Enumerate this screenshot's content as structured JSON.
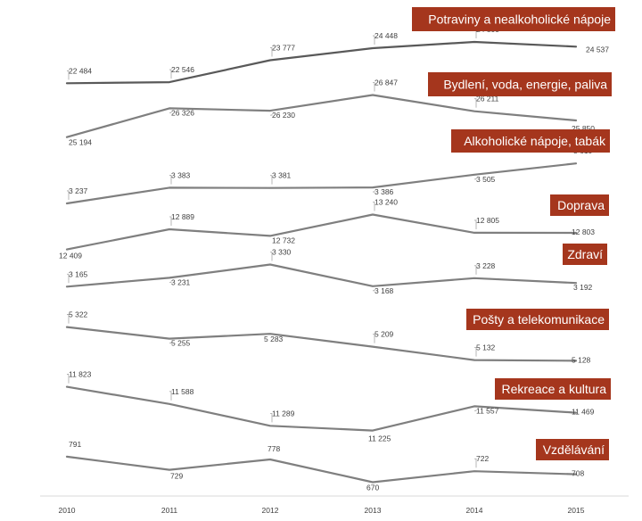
{
  "chart_data": {
    "type": "line",
    "title": "",
    "xlabel": "",
    "ylabel": "",
    "x": [
      "2010",
      "2011",
      "2012",
      "2013",
      "2014",
      "2015"
    ],
    "colors": {
      "line": "#7f7f7f",
      "label_bg": "#a5361d",
      "label_text": "#ffffff",
      "axis": "#d9d9d9",
      "value_text": "#404040"
    },
    "series": [
      {
        "name": "Potraviny a nealkoholické nápoje",
        "values": [
          22484,
          22546,
          23777,
          24448,
          24800,
          24537
        ],
        "labels": [
          "22 484",
          "22 546",
          "23 777",
          "24 448",
          "24 800",
          "24 537"
        ]
      },
      {
        "name": "Bydlení, voda, energie, paliva",
        "values": [
          25194,
          26326,
          26230,
          26847,
          26211,
          25850
        ],
        "labels": [
          "25 194",
          "26 326",
          "26 230",
          "26 847",
          "26 211",
          "25 850"
        ]
      },
      {
        "name": "Alkoholické nápoje, tabák",
        "values": [
          3237,
          3383,
          3381,
          3386,
          3505,
          3610
        ],
        "labels": [
          "3 237",
          "3 383",
          "3 381",
          "3 386",
          "3 505",
          "3 610"
        ]
      },
      {
        "name": "Doprava",
        "values": [
          12409,
          12889,
          12732,
          13240,
          12805,
          12803
        ],
        "labels": [
          "12 409",
          "12 889",
          "12 732",
          "13 240",
          "12 805",
          "12 803"
        ]
      },
      {
        "name": "Zdraví",
        "values": [
          3165,
          3231,
          3330,
          3168,
          3228,
          3192
        ],
        "labels": [
          "3 165",
          "3 231",
          "3 330",
          "3 168",
          "3 228",
          "3 192"
        ]
      },
      {
        "name": "Pošty a telekomunikace",
        "values": [
          5322,
          5255,
          5283,
          5209,
          5132,
          5128
        ],
        "labels": [
          "5 322",
          "5 255",
          "5 283",
          "5 209",
          "5 132",
          "5 128"
        ]
      },
      {
        "name": "Rekreace a kultura",
        "values": [
          11823,
          11588,
          11289,
          11225,
          11557,
          11469
        ],
        "labels": [
          "11 823",
          "11 588",
          "11 289",
          "11 225",
          "11 557",
          "11 469"
        ]
      },
      {
        "name": "Vzdělávání",
        "values": [
          791,
          729,
          778,
          670,
          722,
          708
        ],
        "labels": [
          "791",
          "729",
          "778",
          "670",
          "722",
          "708"
        ]
      }
    ]
  }
}
